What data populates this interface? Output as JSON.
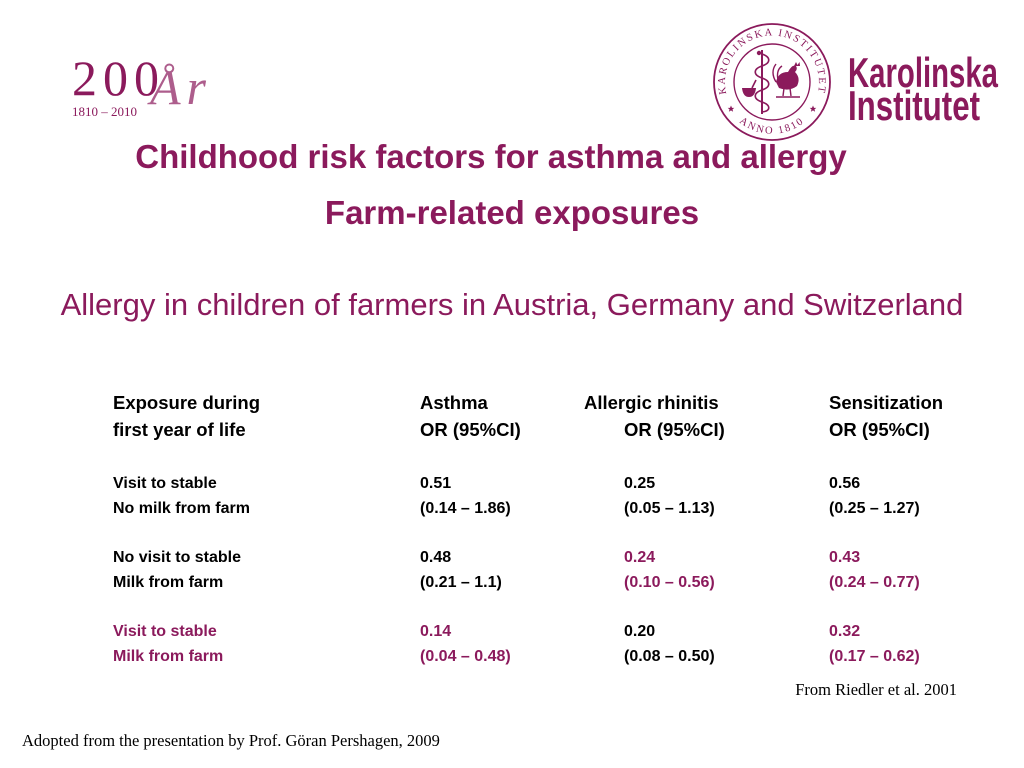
{
  "colors": {
    "accent": "#8b1a5c",
    "text": "#000000"
  },
  "logos": {
    "anniversary": {
      "number": "200",
      "script": "År",
      "years": "1810 – 2010"
    },
    "institute": {
      "seal_top": "KAROLINSKA INSTITUTET",
      "seal_bottom": "ANNO 1810",
      "name_line1": "Karolinska",
      "name_line2": "Institutet"
    }
  },
  "slide": {
    "title": "Childhood risk factors for asthma and allergy",
    "subtitle": "Farm-related exposures",
    "heading": "Allergy in children of farmers in Austria, Germany and Switzerland"
  },
  "table": {
    "headers": [
      {
        "line1": "Exposure during",
        "line2": "first year of life"
      },
      {
        "line1": "Asthma",
        "line2": "OR (95%CI)"
      },
      {
        "line1": "Allergic rhinitis",
        "line2": "OR (95%CI)"
      },
      {
        "line1": "Sensitization",
        "line2": "OR (95%CI)"
      }
    ],
    "groups": [
      {
        "cells": [
          {
            "line1": "Visit to stable",
            "line2": "No milk from farm",
            "highlight": false
          },
          {
            "line1": "0.51",
            "line2": "(0.14 – 1.86)",
            "highlight": false
          },
          {
            "line1": "0.25",
            "line2": "(0.05 – 1.13)",
            "highlight": false
          },
          {
            "line1": "0.56",
            "line2": "(0.25 – 1.27)",
            "highlight": false
          }
        ]
      },
      {
        "cells": [
          {
            "line1": "No visit to stable",
            "line2": "Milk from farm",
            "highlight": false
          },
          {
            "line1": "0.48",
            "line2": "(0.21 – 1.1)",
            "highlight": false
          },
          {
            "line1": "0.24",
            "line2": "(0.10 – 0.56)",
            "highlight": true
          },
          {
            "line1": "0.43",
            "line2": "(0.24 – 0.77)",
            "highlight": true
          }
        ]
      },
      {
        "cells": [
          {
            "line1": "Visit to stable",
            "line2": "Milk from farm",
            "highlight": true
          },
          {
            "line1": "0.14",
            "line2": "(0.04 – 0.48)",
            "highlight": true
          },
          {
            "line1": "0.20",
            "line2": "(0.08 – 0.50)",
            "highlight": false
          },
          {
            "line1": "0.32",
            "line2": "(0.17 – 0.62)",
            "highlight": true
          }
        ]
      }
    ]
  },
  "source": "From Riedler et al. 2001",
  "footer": "Adopted from the presentation by Prof. Göran Pershagen, 2009"
}
